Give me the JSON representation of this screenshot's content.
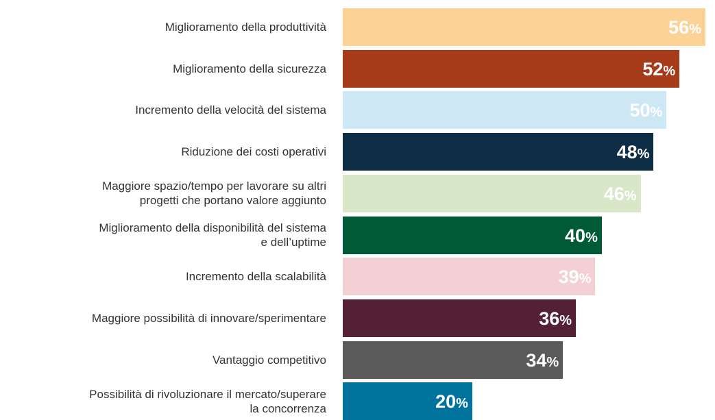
{
  "chart_data": {
    "type": "barh",
    "categories": [
      "Miglioramento della produttività",
      "Miglioramento della sicurezza",
      "Incremento della velocità del sistema",
      "Riduzione dei costi operativi",
      "Maggiore spazio/tempo per lavorare su altri\nprogetti che portano valore aggiunto",
      "Miglioramento della disponibilità del sistema\ne dell’uptime",
      "Incremento della scalabilità",
      "Maggiore possibilità di innovare/sperimentare",
      "Vantaggio competitivo",
      "Possibilità di rivoluzionare il mercato/superare\nla concorrenza"
    ],
    "values": [
      56,
      52,
      50,
      48,
      46,
      40,
      39,
      36,
      34,
      20
    ],
    "value_labels": [
      "56%",
      "52%",
      "50%",
      "48%",
      "46%",
      "40%",
      "39%",
      "36%",
      "34%",
      "20%"
    ],
    "colors": [
      "#fdd296",
      "#a63b1a",
      "#cde7f5",
      "#0c2d44",
      "#d9e7c9",
      "#005a35",
      "#f2d0d4",
      "#532036",
      "#5a5a5a",
      "#00739c"
    ]
  }
}
